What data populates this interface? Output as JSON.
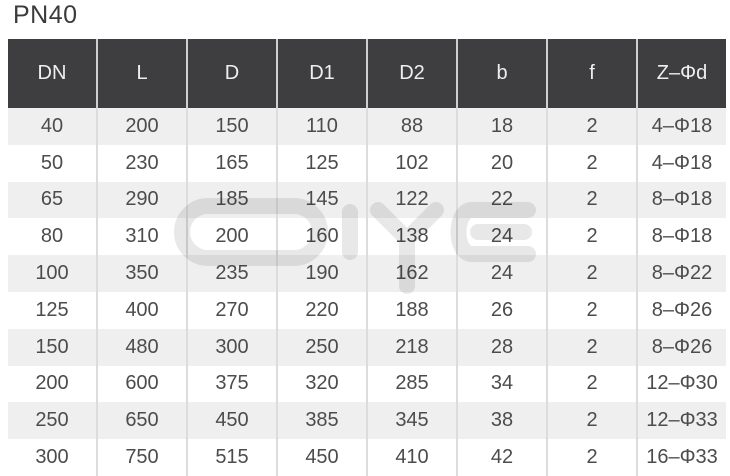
{
  "title": "PN40",
  "watermark_text": "DIYE",
  "colors": {
    "header_bg": "#3e3e40",
    "header_text": "#efefef",
    "row_stripe_bg": "#efefef",
    "row_bg": "#ffffff",
    "cell_text": "#4c4c4c",
    "title_text": "#3b3b3b",
    "grid_line": "#dcdcdc"
  },
  "chart_data": {
    "type": "table",
    "title": "PN40",
    "columns": [
      "DN",
      "L",
      "D",
      "D1",
      "D2",
      "b",
      "f",
      "Z–Φd"
    ],
    "rows": [
      [
        "40",
        "200",
        "150",
        "110",
        "88",
        "18",
        "2",
        "4–Φ18"
      ],
      [
        "50",
        "230",
        "165",
        "125",
        "102",
        "20",
        "2",
        "4–Φ18"
      ],
      [
        "65",
        "290",
        "185",
        "145",
        "122",
        "22",
        "2",
        "8–Φ18"
      ],
      [
        "80",
        "310",
        "200",
        "160",
        "138",
        "24",
        "2",
        "8–Φ18"
      ],
      [
        "100",
        "350",
        "235",
        "190",
        "162",
        "24",
        "2",
        "8–Φ22"
      ],
      [
        "125",
        "400",
        "270",
        "220",
        "188",
        "26",
        "2",
        "8–Φ26"
      ],
      [
        "150",
        "480",
        "300",
        "250",
        "218",
        "28",
        "2",
        "8–Φ26"
      ],
      [
        "200",
        "600",
        "375",
        "320",
        "285",
        "34",
        "2",
        "12–Φ30"
      ],
      [
        "250",
        "650",
        "450",
        "385",
        "345",
        "38",
        "2",
        "12–Φ33"
      ],
      [
        "300",
        "750",
        "515",
        "450",
        "410",
        "42",
        "2",
        "16–Φ33"
      ]
    ],
    "layout": {
      "striped": true,
      "first_data_row_shaded": true,
      "header_style": "dark"
    }
  }
}
